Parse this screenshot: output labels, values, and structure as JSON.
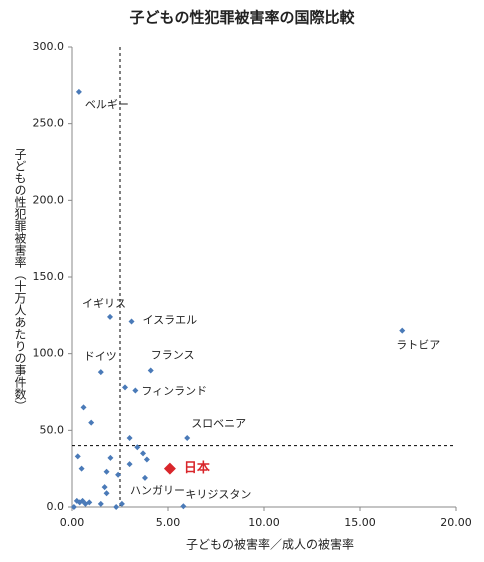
{
  "chart_data": {
    "type": "scatter",
    "title": "子どもの性犯罪被害率の国際比較",
    "x_label": "子どもの被害率／成人の被害率",
    "y_label": "子どもの性犯罪被害率（十万人あたりの事件数）",
    "xlim": [
      0,
      20
    ],
    "ylim": [
      0,
      300
    ],
    "xticks": [
      {
        "value": 0,
        "label": "0.00"
      },
      {
        "value": 5,
        "label": "5.00"
      },
      {
        "value": 10,
        "label": "10.00"
      },
      {
        "value": 15,
        "label": "15.00"
      },
      {
        "value": 20,
        "label": "20.00"
      }
    ],
    "yticks": [
      {
        "value": 0,
        "label": "0.0"
      },
      {
        "value": 50,
        "label": "50.0"
      },
      {
        "value": 100,
        "label": "100.0"
      },
      {
        "value": 150,
        "label": "150.0"
      },
      {
        "value": 200,
        "label": "200.0"
      },
      {
        "value": 250,
        "label": "250.0"
      },
      {
        "value": 300,
        "label": "300.0"
      }
    ],
    "reference_lines": {
      "x": 2.5,
      "y": 40
    },
    "series": [
      {
        "color": "#4a7ab8",
        "x": [
          0.36,
          1.98,
          3.1,
          17.2,
          1.5,
          4.1,
          3.3,
          6.0,
          3.8,
          5.8,
          2.76,
          0.6,
          1.0,
          0.3,
          0.5,
          2.0,
          1.8,
          2.4,
          3.0,
          3.4,
          3.7,
          3.9,
          3.0,
          1.7,
          1.8,
          1.5,
          2.6,
          2.3,
          0.1,
          0.25,
          0.4,
          0.55,
          0.7,
          0.9
        ],
        "values": [
          270.7,
          124,
          121,
          115,
          88,
          89,
          76,
          45,
          19,
          0.5,
          78,
          65,
          55,
          33,
          25,
          32,
          23,
          21,
          45,
          39,
          35,
          31,
          28,
          13,
          9,
          2,
          2,
          0,
          0,
          4,
          3,
          4,
          2,
          3
        ],
        "labels": [
          "ベルギー",
          "イギリス",
          "イスラエル",
          "ラトビア",
          "ドイツ",
          "フランス",
          "フィンランド",
          "スロベニア",
          "ハンガリー",
          "キリジスタン",
          null,
          null,
          null,
          null,
          null,
          null,
          null,
          null,
          null,
          null,
          null,
          null,
          null,
          null,
          null,
          null,
          null,
          null,
          null,
          null,
          null,
          null,
          null,
          null
        ]
      },
      {
        "color": "#d9262b",
        "x": [
          5.1
        ],
        "values": [
          25
        ],
        "labels": [
          "日本"
        ]
      }
    ]
  }
}
